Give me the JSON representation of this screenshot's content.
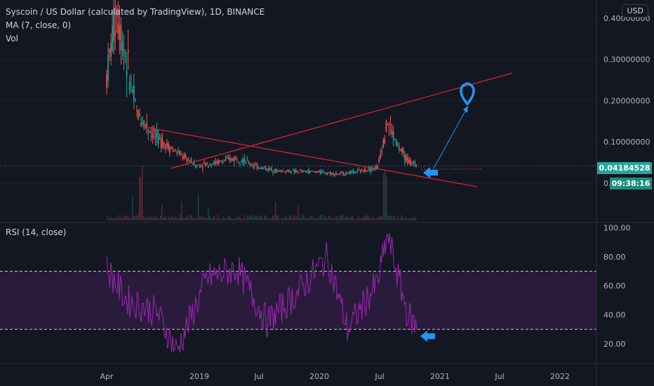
{
  "header": {
    "symbol_title": "Syscoin / US Dollar (calculated by TradingView), 1D, BINANCE",
    "ma_indicator": "MA (7, close, 0)",
    "volume_label": "Vol",
    "rsi_label": "RSI (14, close)",
    "currency_badge": "USD"
  },
  "price_axis": {
    "ticks": [
      "0.40000000",
      "0.30000000",
      "0.20000000",
      "0.10000000",
      "0."
    ],
    "tick_values": [
      0.4,
      0.3,
      0.2,
      0.1,
      0.0
    ],
    "current_price": "0.04184528",
    "countdown": "09:38:16",
    "current_price_color": "#26a69a"
  },
  "rsi_axis": {
    "ticks": [
      "100.00",
      "80.00",
      "60.00",
      "40.00",
      "20.00"
    ],
    "tick_values": [
      100,
      80,
      60,
      40,
      20
    ],
    "overbought": 70,
    "oversold": 30,
    "band_color": "#2a1b3d",
    "line_color": "#9c27b0"
  },
  "time_axis": {
    "ticks": [
      "Apr",
      "2019",
      "Jul",
      "2020",
      "Jul",
      "2021",
      "Jul",
      "2022"
    ]
  },
  "colors": {
    "background": "#131722",
    "up": "#26a69a",
    "down": "#ef5350",
    "trendline": "#d0252f",
    "arrow": "#2196f3",
    "pin": "#2196f3"
  },
  "chart_data": {
    "type": "line",
    "title": "Syscoin / US Dollar (calculated by TradingView), 1D, BINANCE",
    "x": [
      "2018-04",
      "2018-05",
      "2018-07",
      "2018-09",
      "2018-11",
      "2019-01",
      "2019-03",
      "2019-05",
      "2019-07",
      "2019-09",
      "2019-11",
      "2020-01",
      "2020-03",
      "2020-05",
      "2020-07",
      "2020-08",
      "2020-09",
      "2020-10",
      "2020-11"
    ],
    "series": [
      {
        "values": [
          0.26,
          0.42,
          0.17,
          0.11,
          0.075,
          0.042,
          0.05,
          0.062,
          0.04,
          0.03,
          0.028,
          0.028,
          0.022,
          0.028,
          0.038,
          0.15,
          0.09,
          0.055,
          0.042
        ]
      }
    ],
    "ylim": [
      0,
      0.45
    ],
    "rsi": {
      "x": [
        "2018-04",
        "2018-06",
        "2018-09",
        "2018-11",
        "2019-02",
        "2019-05",
        "2019-08",
        "2019-11",
        "2020-02",
        "2020-04",
        "2020-07",
        "2020-08",
        "2020-10",
        "2020-11"
      ],
      "values": [
        72,
        50,
        42,
        15,
        65,
        72,
        35,
        55,
        80,
        30,
        62,
        95,
        40,
        30
      ],
      "ylim": [
        0,
        100
      ]
    }
  }
}
